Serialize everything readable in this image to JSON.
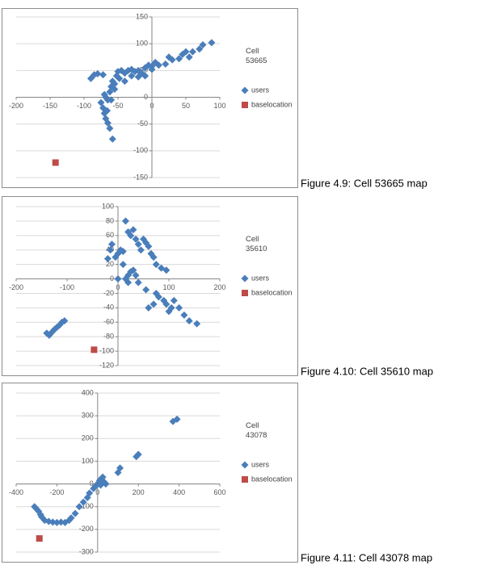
{
  "chart_data": [
    {
      "type": "scatter",
      "legend_title": "Cell 53665",
      "caption": "Figure 4.9: Cell 53665 map",
      "xlim": [
        -200,
        100
      ],
      "xticks": [
        -200,
        -150,
        -100,
        -50,
        0,
        50,
        100
      ],
      "ylim": [
        -150,
        150
      ],
      "yticks": [
        -150,
        -100,
        -50,
        0,
        50,
        100,
        150
      ],
      "grid": true,
      "series": [
        {
          "name": "users",
          "color": "#4a7ebb",
          "marker": "diamond",
          "x": [
            -90,
            -85,
            -80,
            -72,
            -70,
            -68,
            -65,
            -62,
            -60,
            -58,
            -55,
            -52,
            -50,
            -45,
            -40,
            -35,
            -30,
            -25,
            -20,
            -15,
            -10,
            -5,
            0,
            5,
            10,
            20,
            25,
            30,
            40,
            45,
            50,
            55,
            60,
            70,
            75,
            88,
            -75,
            -70,
            -68,
            -65,
            -62,
            -58,
            -72,
            -66,
            -60,
            -55,
            -48,
            -40,
            -30,
            -20,
            -10,
            0
          ],
          "values": [
            35,
            42,
            44,
            42,
            5,
            0,
            -5,
            10,
            20,
            30,
            25,
            40,
            48,
            50,
            45,
            50,
            52,
            48,
            50,
            45,
            55,
            60,
            52,
            65,
            60,
            62,
            75,
            70,
            72,
            80,
            85,
            75,
            85,
            90,
            98,
            102,
            -10,
            -30,
            -40,
            -48,
            -58,
            -78,
            -20,
            -25,
            -5,
            15,
            35,
            30,
            40,
            38,
            40,
            58
          ]
        },
        {
          "name": "baselocation",
          "color": "#be4b48",
          "marker": "square",
          "x": [
            -142
          ],
          "values": [
            -122
          ]
        }
      ]
    },
    {
      "type": "scatter",
      "legend_title": "Cell 35610",
      "caption": "Figure 4.10: Cell 35610 map",
      "xlim": [
        -200,
        200
      ],
      "xticks": [
        -200,
        -100,
        0,
        100,
        200
      ],
      "ylim": [
        -120,
        100
      ],
      "yticks": [
        -120,
        -100,
        -80,
        -60,
        -40,
        -20,
        0,
        20,
        40,
        60,
        80,
        100
      ],
      "grid": true,
      "series": [
        {
          "name": "users",
          "color": "#4a7ebb",
          "marker": "diamond",
          "x": [
            -140,
            -135,
            -130,
            -125,
            -120,
            -115,
            -110,
            -105,
            -20,
            -15,
            -12,
            -5,
            0,
            5,
            10,
            15,
            20,
            25,
            30,
            35,
            40,
            45,
            50,
            55,
            60,
            65,
            70,
            75,
            85,
            95,
            0,
            15,
            20,
            25,
            30,
            35,
            40,
            55,
            60,
            70,
            75,
            80,
            90,
            95,
            100,
            105,
            110,
            120,
            130,
            140,
            155,
            10,
            20
          ],
          "values": [
            -75,
            -78,
            -74,
            -70,
            -67,
            -64,
            -60,
            -58,
            28,
            40,
            48,
            30,
            35,
            40,
            38,
            80,
            65,
            60,
            68,
            55,
            48,
            40,
            55,
            50,
            45,
            35,
            30,
            20,
            15,
            12,
            0,
            0,
            5,
            10,
            12,
            5,
            -5,
            -15,
            -40,
            -35,
            -20,
            -25,
            -30,
            -35,
            -45,
            -40,
            -30,
            -40,
            -50,
            -58,
            -62,
            20,
            -5
          ]
        },
        {
          "name": "baselocation",
          "color": "#be4b48",
          "marker": "square",
          "x": [
            -47
          ],
          "values": [
            -98
          ]
        }
      ]
    },
    {
      "type": "scatter",
      "legend_title": "Cell 43078",
      "caption": "Figure 4.11: Cell 43078 map",
      "xlim": [
        -400,
        600
      ],
      "xticks": [
        -400,
        -200,
        0,
        200,
        400,
        600
      ],
      "ylim": [
        -300,
        400
      ],
      "yticks": [
        -300,
        -200,
        -100,
        0,
        100,
        200,
        300,
        400
      ],
      "grid": true,
      "series": [
        {
          "name": "users",
          "color": "#4a7ebb",
          "marker": "diamond",
          "x": [
            -310,
            -300,
            -290,
            -280,
            -275,
            -260,
            -240,
            -220,
            -200,
            -180,
            -160,
            -140,
            -130,
            -110,
            -90,
            -70,
            -50,
            -40,
            -20,
            -10,
            0,
            5,
            10,
            15,
            20,
            25,
            30,
            35,
            40,
            -5,
            15,
            100,
            110,
            190,
            200,
            370,
            390
          ],
          "values": [
            -100,
            -110,
            -120,
            -135,
            -145,
            -160,
            -165,
            -168,
            -170,
            -168,
            -170,
            -160,
            -150,
            -130,
            -100,
            -80,
            -60,
            -40,
            -20,
            -10,
            0,
            5,
            15,
            20,
            25,
            30,
            10,
            5,
            0,
            -5,
            -5,
            50,
            70,
            120,
            130,
            275,
            285
          ]
        },
        {
          "name": "baselocation",
          "color": "#be4b48",
          "marker": "square",
          "x": [
            -286
          ],
          "values": [
            -240
          ]
        }
      ]
    }
  ]
}
